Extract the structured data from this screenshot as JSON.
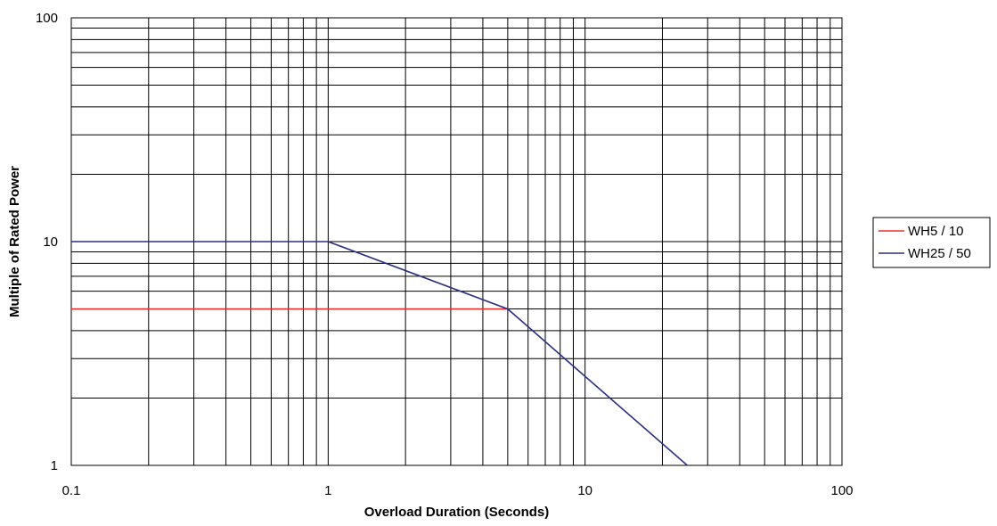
{
  "chart_data": {
    "type": "line",
    "title": "",
    "xlabel": "Overload Duration (Seconds)",
    "ylabel": "Multiple of Rated Power",
    "x_scale": "log",
    "y_scale": "log",
    "xlim": [
      0.1,
      100
    ],
    "ylim": [
      1,
      100
    ],
    "grid": true,
    "legend_position": "right",
    "x_tick_labels": [
      "0.1",
      "1",
      "10",
      "100"
    ],
    "y_tick_labels": [
      "1",
      "10",
      "100"
    ],
    "series": [
      {
        "name": "WH5 / 10",
        "color": "#e8302a",
        "points": [
          [
            0.1,
            5
          ],
          [
            1,
            5
          ],
          [
            5,
            5
          ]
        ]
      },
      {
        "name": "WH25 / 50",
        "color": "#2b2f82",
        "points": [
          [
            0.1,
            10
          ],
          [
            1,
            10
          ],
          [
            5,
            5
          ],
          [
            25,
            1
          ]
        ]
      }
    ]
  }
}
